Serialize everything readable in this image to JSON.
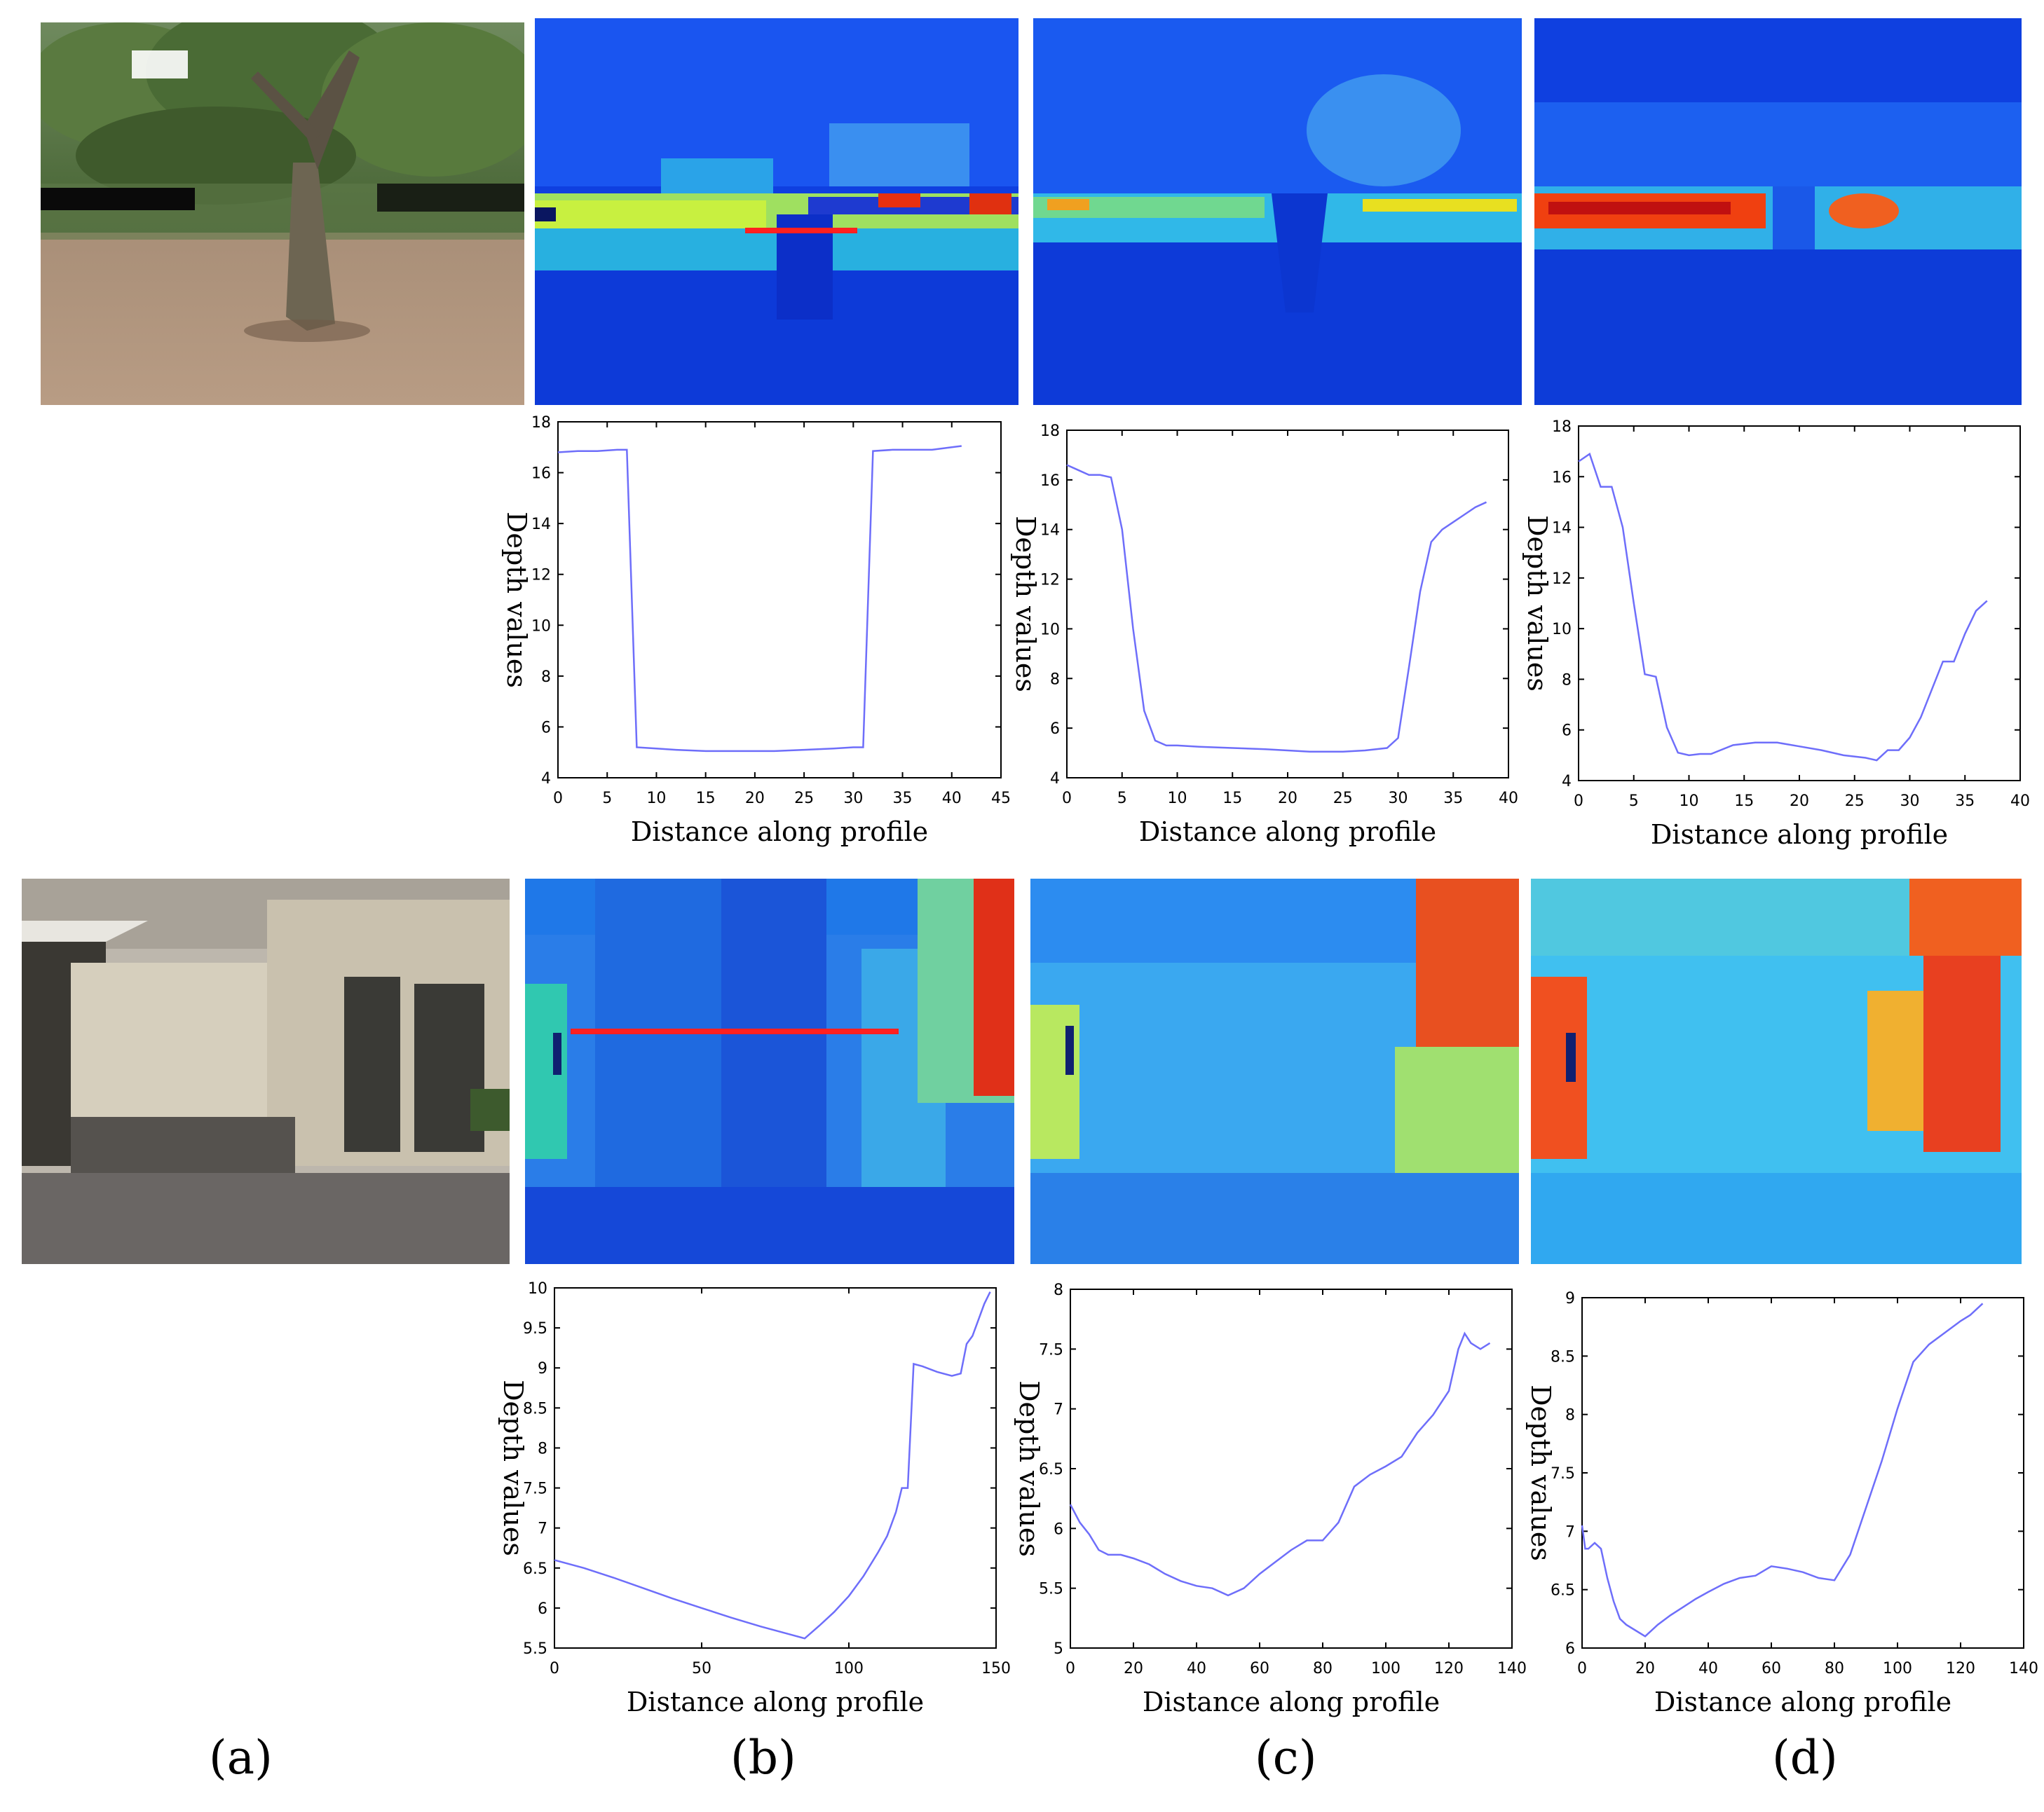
{
  "panel_labels": [
    "(a)",
    "(b)",
    "(c)",
    "(d)"
  ],
  "colors": {
    "line": "#6e6efa",
    "profile_marker": "#ff2020",
    "axis": "#000000"
  },
  "images": [
    {
      "name": "photo-tree",
      "kind": "rgb-photo"
    },
    {
      "name": "depthmap-tree-b",
      "kind": "jet-depthmap"
    },
    {
      "name": "depthmap-tree-c",
      "kind": "jet-depthmap"
    },
    {
      "name": "depthmap-tree-d",
      "kind": "jet-depthmap"
    },
    {
      "name": "photo-building",
      "kind": "rgb-photo"
    },
    {
      "name": "depthmap-building-b",
      "kind": "jet-depthmap"
    },
    {
      "name": "depthmap-building-c",
      "kind": "jet-depthmap"
    },
    {
      "name": "depthmap-building-d",
      "kind": "jet-depthmap"
    }
  ],
  "chart_data": [
    {
      "type": "line",
      "panel": "(b)",
      "row": 1,
      "xlabel": "Distance along profile",
      "ylabel": "Depth values",
      "xlim": [
        0,
        45
      ],
      "ylim": [
        4,
        18
      ],
      "xticks": [
        0,
        5,
        10,
        15,
        20,
        25,
        30,
        35,
        40,
        45
      ],
      "yticks": [
        4,
        6,
        8,
        10,
        12,
        14,
        16,
        18
      ],
      "x": [
        0,
        2,
        4,
        6,
        7,
        8,
        10,
        12,
        15,
        18,
        20,
        22,
        25,
        28,
        30,
        31,
        32,
        34,
        36,
        38,
        40,
        41
      ],
      "y": [
        16.8,
        16.85,
        16.85,
        16.9,
        16.9,
        5.2,
        5.15,
        5.1,
        5.05,
        5.05,
        5.05,
        5.05,
        5.1,
        5.15,
        5.2,
        5.2,
        16.85,
        16.9,
        16.9,
        16.9,
        17.0,
        17.05
      ]
    },
    {
      "type": "line",
      "panel": "(c)",
      "row": 1,
      "xlabel": "Distance along profile",
      "ylabel": "Depth values",
      "xlim": [
        0,
        40
      ],
      "ylim": [
        4,
        18
      ],
      "xticks": [
        0,
        5,
        10,
        15,
        20,
        25,
        30,
        35,
        40
      ],
      "yticks": [
        4,
        6,
        8,
        10,
        12,
        14,
        16,
        18
      ],
      "x": [
        0,
        1,
        2,
        3,
        4,
        5,
        6,
        7,
        8,
        9,
        10,
        12,
        15,
        18,
        20,
        22,
        25,
        27,
        29,
        30,
        31,
        32,
        33,
        34,
        35,
        36,
        37,
        38
      ],
      "y": [
        16.6,
        16.4,
        16.2,
        16.2,
        16.1,
        14.0,
        10.0,
        6.7,
        5.5,
        5.3,
        5.3,
        5.25,
        5.2,
        5.15,
        5.1,
        5.05,
        5.05,
        5.1,
        5.2,
        5.6,
        8.5,
        11.5,
        13.5,
        14.0,
        14.3,
        14.6,
        14.9,
        15.1
      ]
    },
    {
      "type": "line",
      "panel": "(d)",
      "row": 1,
      "xlabel": "Distance along profile",
      "ylabel": "Depth values",
      "xlim": [
        0,
        40
      ],
      "ylim": [
        4,
        18
      ],
      "xticks": [
        0,
        5,
        10,
        15,
        20,
        25,
        30,
        35,
        40
      ],
      "yticks": [
        4,
        6,
        8,
        10,
        12,
        14,
        16,
        18
      ],
      "x": [
        0,
        1,
        2,
        3,
        4,
        5,
        6,
        7,
        8,
        9,
        10,
        11,
        12,
        14,
        16,
        18,
        20,
        22,
        24,
        26,
        27,
        28,
        29,
        30,
        31,
        32,
        33,
        34,
        35,
        36,
        37
      ],
      "y": [
        16.6,
        16.9,
        15.6,
        15.6,
        14.0,
        11.0,
        8.2,
        8.1,
        6.1,
        5.1,
        5.0,
        5.05,
        5.05,
        5.4,
        5.5,
        5.5,
        5.35,
        5.2,
        5.0,
        4.9,
        4.8,
        5.2,
        5.2,
        5.7,
        6.5,
        7.6,
        8.7,
        8.7,
        9.8,
        10.7,
        11.1
      ]
    },
    {
      "type": "line",
      "panel": "(b)",
      "row": 2,
      "xlabel": "Distance along profile",
      "ylabel": "Depth values",
      "xlim": [
        0,
        150
      ],
      "ylim": [
        5.5,
        10
      ],
      "xticks": [
        0,
        50,
        100,
        150
      ],
      "yticks": [
        5.5,
        6,
        6.5,
        7,
        7.5,
        8,
        8.5,
        9,
        9.5,
        10
      ],
      "x": [
        0,
        10,
        20,
        30,
        40,
        50,
        60,
        70,
        80,
        85,
        90,
        95,
        100,
        105,
        110,
        113,
        116,
        118,
        120,
        122,
        125,
        130,
        135,
        138,
        140,
        142,
        144,
        146,
        148
      ],
      "y": [
        6.6,
        6.5,
        6.38,
        6.25,
        6.12,
        6.0,
        5.88,
        5.77,
        5.67,
        5.62,
        5.78,
        5.95,
        6.15,
        6.4,
        6.7,
        6.9,
        7.2,
        7.5,
        7.5,
        9.05,
        9.02,
        8.95,
        8.9,
        8.93,
        9.3,
        9.4,
        9.6,
        9.8,
        9.95
      ]
    },
    {
      "type": "line",
      "panel": "(c)",
      "row": 2,
      "xlabel": "Distance along profile",
      "ylabel": "Depth values",
      "xlim": [
        0,
        140
      ],
      "ylim": [
        5,
        8
      ],
      "xticks": [
        0,
        20,
        40,
        60,
        80,
        100,
        120,
        140
      ],
      "yticks": [
        5,
        5.5,
        6,
        6.5,
        7,
        7.5,
        8
      ],
      "x": [
        0,
        3,
        6,
        9,
        12,
        16,
        20,
        25,
        30,
        35,
        40,
        45,
        50,
        55,
        60,
        65,
        70,
        75,
        80,
        85,
        90,
        95,
        100,
        105,
        110,
        115,
        120,
        123,
        125,
        127,
        130,
        133
      ],
      "y": [
        6.2,
        6.05,
        5.95,
        5.82,
        5.78,
        5.78,
        5.75,
        5.7,
        5.62,
        5.56,
        5.52,
        5.5,
        5.44,
        5.5,
        5.62,
        5.72,
        5.82,
        5.9,
        5.9,
        6.05,
        6.35,
        6.45,
        6.52,
        6.6,
        6.8,
        6.95,
        7.15,
        7.5,
        7.63,
        7.55,
        7.5,
        7.55
      ]
    },
    {
      "type": "line",
      "panel": "(d)",
      "row": 2,
      "xlabel": "Distance along profile",
      "ylabel": "Depth values",
      "xlim": [
        0,
        140
      ],
      "ylim": [
        6,
        9
      ],
      "xticks": [
        0,
        20,
        40,
        60,
        80,
        100,
        120,
        140
      ],
      "yticks": [
        6,
        6.5,
        7,
        7.5,
        8,
        8.5,
        9
      ],
      "x": [
        0,
        1,
        2,
        4,
        6,
        8,
        10,
        12,
        14,
        17,
        20,
        24,
        28,
        32,
        36,
        40,
        45,
        50,
        55,
        60,
        65,
        70,
        75,
        80,
        85,
        90,
        95,
        100,
        105,
        110,
        115,
        120,
        123,
        125,
        127
      ],
      "y": [
        7.05,
        6.85,
        6.85,
        6.9,
        6.85,
        6.6,
        6.4,
        6.25,
        6.2,
        6.15,
        6.1,
        6.2,
        6.28,
        6.35,
        6.42,
        6.48,
        6.55,
        6.6,
        6.62,
        6.7,
        6.68,
        6.65,
        6.6,
        6.58,
        6.8,
        7.2,
        7.6,
        8.05,
        8.45,
        8.6,
        8.7,
        8.8,
        8.85,
        8.9,
        8.95
      ]
    }
  ]
}
